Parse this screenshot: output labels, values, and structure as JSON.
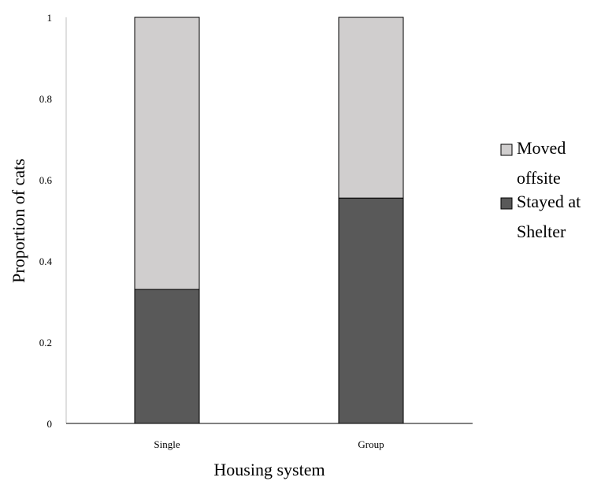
{
  "chart_data": {
    "type": "bar",
    "stacked": true,
    "categories": [
      "Single",
      "Group"
    ],
    "series": [
      {
        "name": "Stayed at Shelter",
        "values": [
          0.33,
          0.555
        ],
        "color": "#595959"
      },
      {
        "name": "Moved offsite",
        "values": [
          0.67,
          0.445
        ],
        "color": "#d0cece"
      }
    ],
    "title": "",
    "xlabel": "Housing system",
    "ylabel": "Proportion of cats",
    "ylim": [
      0,
      1
    ],
    "yticks": [
      "0",
      "0.2",
      "0.4",
      "0.6",
      "0.8",
      "1"
    ],
    "grid": false,
    "legend": {
      "position": "right",
      "entries": [
        {
          "lines": [
            "Moved",
            "offsite"
          ],
          "color": "#d0cece"
        },
        {
          "lines": [
            "Stayed at",
            "Shelter"
          ],
          "color": "#595959"
        }
      ]
    }
  }
}
